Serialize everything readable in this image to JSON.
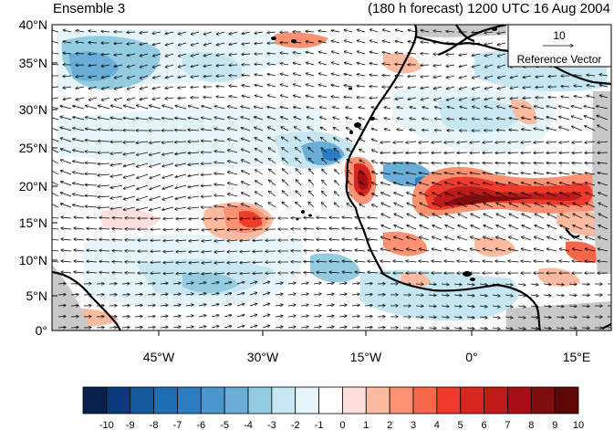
{
  "header": {
    "left_title": "Ensemble 3",
    "right_title": "(180 h forecast) 1200 UTC 16 Aug 2004"
  },
  "reference_vector": {
    "magnitude": "10",
    "label": "Reference Vector"
  },
  "axes": {
    "lat_labels": [
      "40°N",
      "35°N",
      "30°N",
      "25°N",
      "20°N",
      "15°N",
      "10°N",
      "5°N",
      "0°"
    ],
    "lon_labels": [
      "45°W",
      "30°W",
      "15°W",
      "0°",
      "15°E"
    ]
  },
  "colorbar": {
    "labels": [
      "-10",
      "-9",
      "-8",
      "-7",
      "-6",
      "-5",
      "-4",
      "-3",
      "-2",
      "-1",
      "0",
      "1",
      "2",
      "3",
      "4",
      "5",
      "6",
      "7",
      "8",
      "9",
      "10"
    ],
    "colors": [
      "#08214a",
      "#0a3a7a",
      "#155a9c",
      "#1f6db3",
      "#2a7dc0",
      "#4a96cd",
      "#6aaed7",
      "#93cbe0",
      "#c6e7f2",
      "#e6f5fa",
      "#ffffff",
      "#fde0dd",
      "#fcbba1",
      "#fc9272",
      "#f7684a",
      "#ef3b2c",
      "#d7261e",
      "#c01b1b",
      "#a50f15",
      "#800d0d",
      "#5e0707"
    ]
  }
}
